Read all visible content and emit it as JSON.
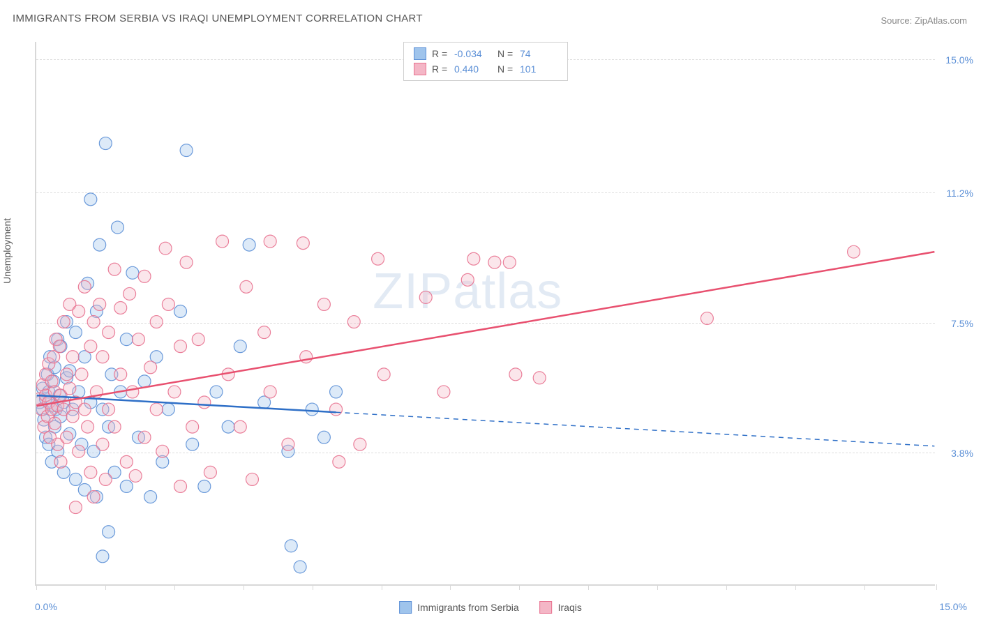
{
  "title": "IMMIGRANTS FROM SERBIA VS IRAQI UNEMPLOYMENT CORRELATION CHART",
  "source": "Source: ZipAtlas.com",
  "y_axis_label": "Unemployment",
  "watermark_bold": "ZIP",
  "watermark_light": "atlas",
  "chart": {
    "type": "scatter",
    "background_color": "#ffffff",
    "grid_color": "#dddddd",
    "axis_color": "#d8d8d8",
    "xlim": [
      0,
      15
    ],
    "ylim": [
      0,
      15.5
    ],
    "x_tick_positions": [
      0,
      1.15,
      2.3,
      3.45,
      4.6,
      5.75,
      6.9,
      8.05,
      9.2,
      10.35,
      11.5,
      12.65,
      13.8,
      15
    ],
    "y_ticks": [
      {
        "value": 3.8,
        "label": "3.8%"
      },
      {
        "value": 7.5,
        "label": "7.5%"
      },
      {
        "value": 11.2,
        "label": "11.2%"
      },
      {
        "value": 15.0,
        "label": "15.0%"
      }
    ],
    "x_label_min": "0.0%",
    "x_label_max": "15.0%",
    "tick_label_color": "#5b8fd6",
    "tick_label_fontsize": 14,
    "marker_radius": 9,
    "marker_fill_opacity": 0.35,
    "marker_stroke_opacity": 0.9,
    "marker_stroke_width": 1.2,
    "trend_line_width": 2.5,
    "series": [
      {
        "name": "Immigrants from Serbia",
        "color_fill": "#9fc4ec",
        "color_stroke": "#5b8fd6",
        "trend_color": "#2e6fc7",
        "R": "-0.034",
        "N": "74",
        "trend_line": {
          "x1": 0,
          "y1": 5.4,
          "x2": 15,
          "y2": 3.95
        },
        "trend_solid_until_x": 5.0,
        "points": [
          [
            0.05,
            5.2
          ],
          [
            0.1,
            5.0
          ],
          [
            0.1,
            5.6
          ],
          [
            0.12,
            4.7
          ],
          [
            0.15,
            5.3
          ],
          [
            0.15,
            4.2
          ],
          [
            0.18,
            6.0
          ],
          [
            0.2,
            5.5
          ],
          [
            0.2,
            4.0
          ],
          [
            0.22,
            6.5
          ],
          [
            0.25,
            5.1
          ],
          [
            0.25,
            3.5
          ],
          [
            0.28,
            5.8
          ],
          [
            0.3,
            4.5
          ],
          [
            0.3,
            6.2
          ],
          [
            0.32,
            5.0
          ],
          [
            0.35,
            7.0
          ],
          [
            0.35,
            3.8
          ],
          [
            0.38,
            5.4
          ],
          [
            0.4,
            4.8
          ],
          [
            0.4,
            6.8
          ],
          [
            0.45,
            5.2
          ],
          [
            0.45,
            3.2
          ],
          [
            0.5,
            7.5
          ],
          [
            0.5,
            5.9
          ],
          [
            0.55,
            4.3
          ],
          [
            0.55,
            6.1
          ],
          [
            0.6,
            5.0
          ],
          [
            0.65,
            3.0
          ],
          [
            0.65,
            7.2
          ],
          [
            0.7,
            5.5
          ],
          [
            0.75,
            4.0
          ],
          [
            0.8,
            6.5
          ],
          [
            0.8,
            2.7
          ],
          [
            0.85,
            8.6
          ],
          [
            0.9,
            5.2
          ],
          [
            0.9,
            11.0
          ],
          [
            0.95,
            3.8
          ],
          [
            1.0,
            7.8
          ],
          [
            1.0,
            2.5
          ],
          [
            1.05,
            9.7
          ],
          [
            1.1,
            5.0
          ],
          [
            1.1,
            0.8
          ],
          [
            1.15,
            12.6
          ],
          [
            1.2,
            4.5
          ],
          [
            1.2,
            1.5
          ],
          [
            1.25,
            6.0
          ],
          [
            1.3,
            3.2
          ],
          [
            1.35,
            10.2
          ],
          [
            1.4,
            5.5
          ],
          [
            1.5,
            2.8
          ],
          [
            1.5,
            7.0
          ],
          [
            1.6,
            8.9
          ],
          [
            1.7,
            4.2
          ],
          [
            1.8,
            5.8
          ],
          [
            1.9,
            2.5
          ],
          [
            2.0,
            6.5
          ],
          [
            2.1,
            3.5
          ],
          [
            2.2,
            5.0
          ],
          [
            2.4,
            7.8
          ],
          [
            2.5,
            12.4
          ],
          [
            2.6,
            4.0
          ],
          [
            2.8,
            2.8
          ],
          [
            3.0,
            5.5
          ],
          [
            3.2,
            4.5
          ],
          [
            3.4,
            6.8
          ],
          [
            3.55,
            9.7
          ],
          [
            3.8,
            5.2
          ],
          [
            4.2,
            3.8
          ],
          [
            4.25,
            1.1
          ],
          [
            4.4,
            0.5
          ],
          [
            4.6,
            5.0
          ],
          [
            4.8,
            4.2
          ],
          [
            5.0,
            5.5
          ]
        ]
      },
      {
        "name": "Iraqis",
        "color_fill": "#f4b6c6",
        "color_stroke": "#e8718f",
        "trend_color": "#e8506f",
        "R": "0.440",
        "N": "101",
        "trend_line": {
          "x1": 0,
          "y1": 5.1,
          "x2": 15,
          "y2": 9.5
        },
        "trend_solid_until_x": 15.0,
        "points": [
          [
            0.05,
            5.3
          ],
          [
            0.08,
            5.0
          ],
          [
            0.1,
            5.7
          ],
          [
            0.12,
            4.5
          ],
          [
            0.15,
            5.4
          ],
          [
            0.15,
            6.0
          ],
          [
            0.18,
            4.8
          ],
          [
            0.2,
            5.2
          ],
          [
            0.2,
            6.3
          ],
          [
            0.22,
            4.2
          ],
          [
            0.25,
            5.8
          ],
          [
            0.25,
            5.0
          ],
          [
            0.28,
            6.5
          ],
          [
            0.3,
            4.6
          ],
          [
            0.3,
            5.5
          ],
          [
            0.32,
            7.0
          ],
          [
            0.35,
            5.1
          ],
          [
            0.35,
            4.0
          ],
          [
            0.38,
            6.8
          ],
          [
            0.4,
            5.4
          ],
          [
            0.4,
            3.5
          ],
          [
            0.45,
            7.5
          ],
          [
            0.45,
            5.0
          ],
          [
            0.5,
            6.0
          ],
          [
            0.5,
            4.2
          ],
          [
            0.55,
            5.6
          ],
          [
            0.55,
            8.0
          ],
          [
            0.6,
            4.8
          ],
          [
            0.6,
            6.5
          ],
          [
            0.65,
            5.2
          ],
          [
            0.7,
            7.8
          ],
          [
            0.7,
            3.8
          ],
          [
            0.75,
            6.0
          ],
          [
            0.8,
            5.0
          ],
          [
            0.8,
            8.5
          ],
          [
            0.85,
            4.5
          ],
          [
            0.9,
            6.8
          ],
          [
            0.9,
            3.2
          ],
          [
            0.95,
            7.5
          ],
          [
            0.95,
            2.5
          ],
          [
            1.0,
            5.5
          ],
          [
            1.05,
            8.0
          ],
          [
            1.1,
            4.0
          ],
          [
            1.1,
            6.5
          ],
          [
            1.15,
            3.0
          ],
          [
            1.2,
            7.2
          ],
          [
            1.2,
            5.0
          ],
          [
            1.3,
            9.0
          ],
          [
            1.3,
            4.5
          ],
          [
            1.4,
            6.0
          ],
          [
            1.4,
            7.9
          ],
          [
            1.5,
            3.5
          ],
          [
            1.55,
            8.3
          ],
          [
            1.6,
            5.5
          ],
          [
            1.7,
            7.0
          ],
          [
            1.8,
            4.2
          ],
          [
            1.8,
            8.8
          ],
          [
            1.9,
            6.2
          ],
          [
            2.0,
            5.0
          ],
          [
            2.0,
            7.5
          ],
          [
            2.1,
            3.8
          ],
          [
            2.2,
            8.0
          ],
          [
            2.3,
            5.5
          ],
          [
            2.4,
            6.8
          ],
          [
            2.4,
            2.8
          ],
          [
            2.5,
            9.2
          ],
          [
            2.6,
            4.5
          ],
          [
            2.7,
            7.0
          ],
          [
            2.8,
            5.2
          ],
          [
            2.9,
            3.2
          ],
          [
            3.1,
            9.8
          ],
          [
            3.2,
            6.0
          ],
          [
            3.4,
            4.5
          ],
          [
            3.5,
            8.5
          ],
          [
            3.6,
            3.0
          ],
          [
            3.8,
            7.2
          ],
          [
            3.9,
            5.5
          ],
          [
            3.9,
            9.8
          ],
          [
            4.2,
            4.0
          ],
          [
            4.45,
            9.75
          ],
          [
            4.5,
            6.5
          ],
          [
            4.8,
            8.0
          ],
          [
            5.0,
            5.0
          ],
          [
            5.05,
            3.5
          ],
          [
            5.3,
            7.5
          ],
          [
            5.4,
            4.0
          ],
          [
            5.7,
            9.3
          ],
          [
            5.8,
            6.0
          ],
          [
            6.5,
            8.2
          ],
          [
            6.8,
            5.5
          ],
          [
            7.2,
            8.7
          ],
          [
            7.3,
            9.3
          ],
          [
            7.65,
            9.2
          ],
          [
            7.9,
            9.2
          ],
          [
            8.0,
            6.0
          ],
          [
            8.4,
            5.9
          ],
          [
            11.2,
            7.6
          ],
          [
            13.65,
            9.5
          ],
          [
            1.65,
            3.1
          ],
          [
            2.15,
            9.6
          ],
          [
            0.65,
            2.2
          ]
        ]
      }
    ]
  },
  "stats_box": {
    "R_label": "R =",
    "N_label": "N ="
  },
  "bottom_legend": [
    {
      "swatch_fill": "#9fc4ec",
      "swatch_stroke": "#5b8fd6",
      "label": "Immigrants from Serbia"
    },
    {
      "swatch_fill": "#f4b6c6",
      "swatch_stroke": "#e8718f",
      "label": "Iraqis"
    }
  ]
}
